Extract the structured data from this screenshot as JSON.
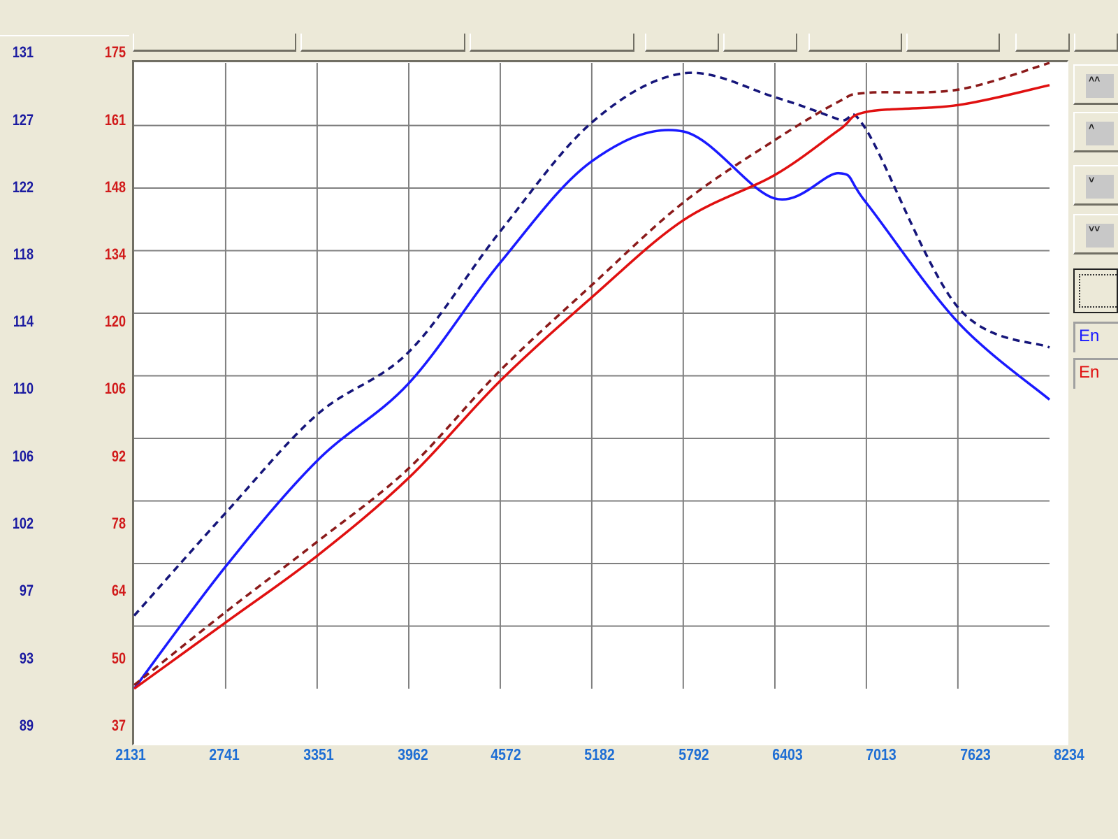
{
  "chart_data": {
    "type": "line",
    "title": "",
    "xlabel": "",
    "ylabel_left": "",
    "ylabel_right": "",
    "x_ticks": [
      2131,
      2741,
      3351,
      3962,
      4572,
      5182,
      5792,
      6403,
      7013,
      7623,
      8234
    ],
    "y_ticks_blue": [
      131,
      127,
      122,
      118,
      114,
      110,
      106,
      102,
      97,
      93,
      89
    ],
    "y_ticks_red": [
      175,
      161,
      148,
      134,
      120,
      106,
      92,
      78,
      64,
      50,
      37
    ],
    "xlim": [
      2131,
      8234
    ],
    "ylim_blue": [
      89,
      131
    ],
    "ylim_red": [
      37,
      175
    ],
    "grid": true,
    "x": [
      2131,
      2741,
      3351,
      3962,
      4572,
      5182,
      5792,
      6403,
      6830,
      7013,
      7623,
      8234
    ],
    "series": [
      {
        "name": "En (blue, solid)",
        "axis": "blue",
        "style": "solid",
        "color": "#1a1aff",
        "values": [
          89.0,
          97.2,
          104.3,
          109.5,
          117.6,
          124.4,
          126.4,
          121.9,
          123.6,
          121.6,
          113.6,
          108.4
        ]
      },
      {
        "name": "En (blue, dashed)",
        "axis": "blue",
        "style": "dashed",
        "color": "#15157a",
        "values": [
          93.9,
          100.8,
          107.4,
          111.6,
          119.7,
          127.0,
          130.3,
          128.7,
          127.2,
          126.5,
          114.6,
          111.9
        ]
      },
      {
        "name": "En (red, solid)",
        "axis": "red",
        "style": "solid",
        "color": "#e01010",
        "values": [
          37.0,
          51.6,
          66.3,
          83.5,
          104.9,
          123.3,
          140.3,
          150.3,
          160.2,
          164.2,
          165.7,
          170.1
        ]
      },
      {
        "name": "En (red, dashed)",
        "axis": "red",
        "style": "dashed",
        "color": "#8b1a1a",
        "values": [
          37.8,
          53.9,
          69.4,
          85.6,
          107.2,
          126.0,
          144.2,
          158.0,
          166.5,
          168.4,
          169.1,
          175.0
        ]
      }
    ],
    "legend_position": "right"
  },
  "side_panel": {
    "buttons": [
      {
        "icon": "double-chevron-up-icon",
        "glyph": "˄˄"
      },
      {
        "icon": "chevron-up-icon",
        "glyph": "˄"
      },
      {
        "icon": "chevron-down-icon",
        "glyph": "˅"
      },
      {
        "icon": "double-chevron-down-icon",
        "glyph": "˅˅"
      }
    ],
    "legend": [
      {
        "label": "En",
        "color": "#1a1aff"
      },
      {
        "label": "En",
        "color": "#e01010"
      }
    ]
  },
  "colors": {
    "background": "#ece9d8",
    "plot_bg": "#ffffff",
    "grid": "#808080",
    "blue_axis": "#1a1aa0",
    "red_axis": "#d11a1a",
    "x_axis": "#1e6ed4"
  }
}
